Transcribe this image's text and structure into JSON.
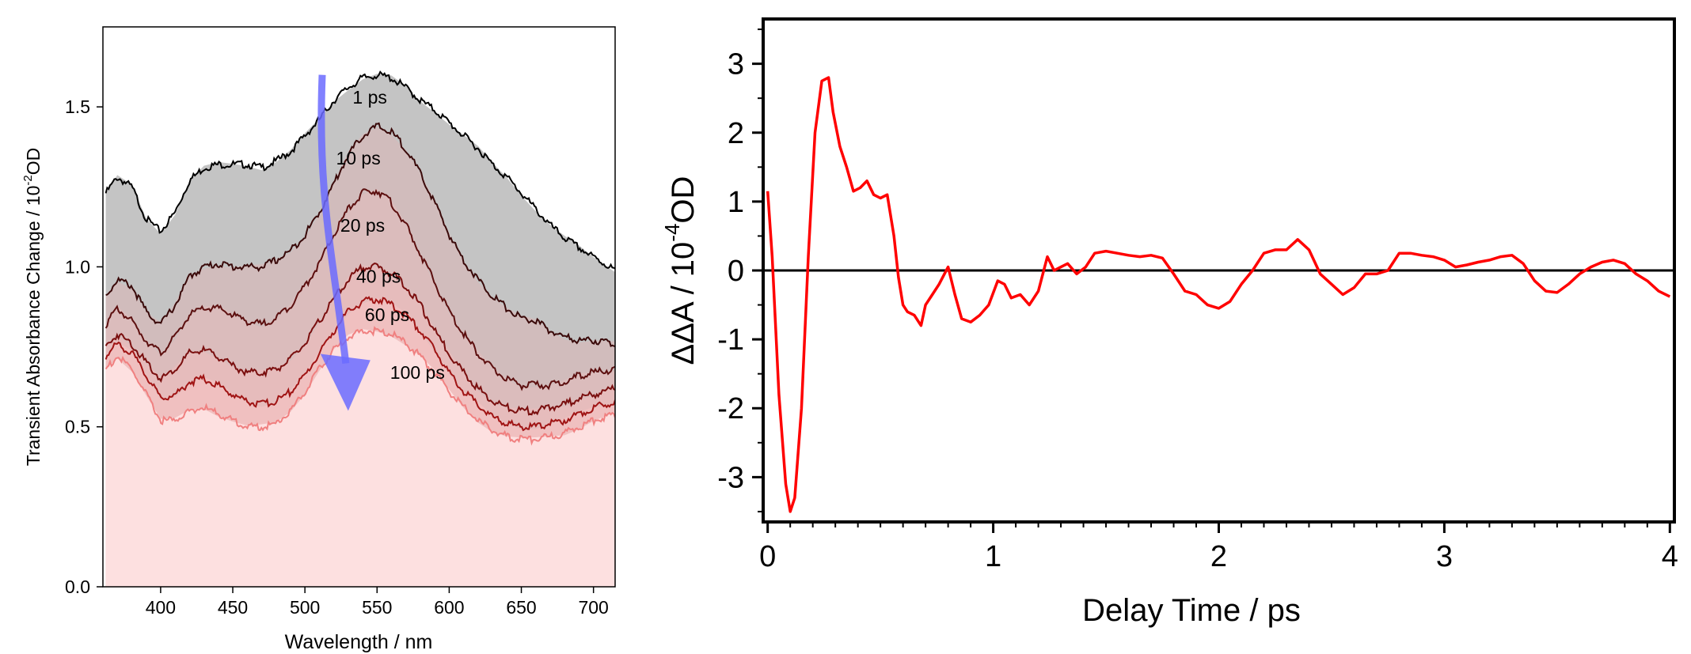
{
  "chart_data": [
    {
      "type": "area",
      "xlabel": "Wavelength / nm",
      "ylabel": "Transient Absorbance Change  / 10",
      "ylabel_exponent": "-2",
      "ylabel_unit": "OD",
      "xlim": [
        360,
        715
      ],
      "ylim": [
        0.0,
        1.75
      ],
      "xticks": [
        400,
        450,
        500,
        550,
        600,
        650,
        700
      ],
      "yticks": [
        0.0,
        0.5,
        1.0,
        1.5
      ],
      "ytick_labels": [
        "0.0",
        "0.5",
        "1.0",
        "1.5"
      ],
      "x": [
        362,
        370,
        380,
        390,
        400,
        410,
        420,
        430,
        440,
        450,
        460,
        470,
        480,
        490,
        500,
        510,
        520,
        530,
        540,
        550,
        560,
        570,
        580,
        590,
        600,
        610,
        620,
        630,
        640,
        650,
        660,
        670,
        680,
        690,
        700,
        715
      ],
      "series": [
        {
          "name": "1 ps",
          "color": "#000000",
          "fill": "#c4c4c4",
          "values": [
            1.23,
            1.28,
            1.25,
            1.15,
            1.11,
            1.17,
            1.27,
            1.31,
            1.32,
            1.32,
            1.32,
            1.31,
            1.33,
            1.36,
            1.41,
            1.46,
            1.52,
            1.56,
            1.59,
            1.6,
            1.59,
            1.56,
            1.52,
            1.49,
            1.45,
            1.41,
            1.37,
            1.32,
            1.28,
            1.23,
            1.18,
            1.13,
            1.09,
            1.06,
            1.03,
            0.99
          ]
        },
        {
          "name": "10 ps",
          "color": "#3a0a0a",
          "fill": "#d1bcbc",
          "values": [
            0.91,
            0.96,
            0.94,
            0.86,
            0.82,
            0.88,
            0.97,
            1.0,
            1.01,
            1.0,
            1.0,
            1.0,
            1.02,
            1.05,
            1.1,
            1.17,
            1.26,
            1.35,
            1.41,
            1.44,
            1.42,
            1.37,
            1.29,
            1.2,
            1.1,
            1.02,
            0.96,
            0.91,
            0.87,
            0.84,
            0.83,
            0.8,
            0.78,
            0.77,
            0.77,
            0.76
          ]
        },
        {
          "name": "20 ps",
          "color": "#5c0f0f",
          "fill": "#dbbcbc",
          "values": [
            0.82,
            0.87,
            0.83,
            0.77,
            0.73,
            0.78,
            0.85,
            0.87,
            0.87,
            0.85,
            0.83,
            0.82,
            0.84,
            0.88,
            0.94,
            1.01,
            1.1,
            1.18,
            1.23,
            1.24,
            1.2,
            1.13,
            1.04,
            0.95,
            0.86,
            0.79,
            0.73,
            0.68,
            0.65,
            0.63,
            0.63,
            0.63,
            0.64,
            0.66,
            0.67,
            0.68
          ]
        },
        {
          "name": "40 ps",
          "color": "#7a0f0f",
          "fill": "#e6bcbc",
          "values": [
            0.75,
            0.79,
            0.76,
            0.7,
            0.65,
            0.68,
            0.73,
            0.74,
            0.72,
            0.69,
            0.67,
            0.67,
            0.68,
            0.71,
            0.76,
            0.83,
            0.9,
            0.96,
            1.0,
            1.0,
            0.98,
            0.94,
            0.88,
            0.8,
            0.73,
            0.67,
            0.62,
            0.58,
            0.56,
            0.55,
            0.55,
            0.56,
            0.57,
            0.59,
            0.6,
            0.62
          ]
        },
        {
          "name": "60 ps",
          "color": "#a01414",
          "fill": "#f0c0c0",
          "values": [
            0.72,
            0.76,
            0.73,
            0.66,
            0.59,
            0.6,
            0.64,
            0.65,
            0.63,
            0.6,
            0.58,
            0.57,
            0.58,
            0.61,
            0.66,
            0.73,
            0.8,
            0.86,
            0.89,
            0.9,
            0.88,
            0.85,
            0.8,
            0.74,
            0.67,
            0.61,
            0.57,
            0.53,
            0.51,
            0.5,
            0.5,
            0.51,
            0.52,
            0.54,
            0.56,
            0.58
          ]
        },
        {
          "name": "100 ps",
          "color": "#f08080",
          "fill": "#fde0e0",
          "values": [
            0.68,
            0.72,
            0.68,
            0.6,
            0.52,
            0.52,
            0.55,
            0.56,
            0.54,
            0.52,
            0.5,
            0.5,
            0.51,
            0.55,
            0.61,
            0.68,
            0.74,
            0.78,
            0.8,
            0.8,
            0.79,
            0.76,
            0.72,
            0.67,
            0.61,
            0.56,
            0.52,
            0.49,
            0.47,
            0.46,
            0.46,
            0.47,
            0.48,
            0.5,
            0.52,
            0.54
          ]
        }
      ],
      "annotations": [
        {
          "text": "1 ps",
          "x": 545,
          "y": 1.51
        },
        {
          "text": "10 ps",
          "x": 537,
          "y": 1.32
        },
        {
          "text": "20 ps",
          "x": 540,
          "y": 1.11
        },
        {
          "text": "40 ps",
          "x": 551,
          "y": 0.95
        },
        {
          "text": "60 ps",
          "x": 557,
          "y": 0.83
        },
        {
          "text": "100 ps",
          "x": 578,
          "y": 0.65
        }
      ],
      "arrow": {
        "color": "#6b6bff",
        "from": [
          512,
          1.6
        ],
        "to": [
          530,
          0.55
        ]
      }
    },
    {
      "type": "line",
      "xlabel": "Delay Time / ps",
      "ylabel": "ΔΔA / 10",
      "ylabel_exponent": "-4",
      "ylabel_unit": "OD",
      "xlim": [
        -0.02,
        4.02
      ],
      "ylim": [
        -3.65,
        3.65
      ],
      "xticks": [
        0,
        1,
        2,
        3,
        4
      ],
      "yticks": [
        -3,
        -2,
        -1,
        0,
        1,
        2,
        3
      ],
      "zero_line": true,
      "series": [
        {
          "color": "#ff0000",
          "x": [
            0.0,
            0.02,
            0.05,
            0.08,
            0.1,
            0.12,
            0.15,
            0.18,
            0.21,
            0.24,
            0.27,
            0.29,
            0.32,
            0.35,
            0.38,
            0.41,
            0.44,
            0.47,
            0.5,
            0.53,
            0.56,
            0.58,
            0.6,
            0.62,
            0.65,
            0.68,
            0.7,
            0.73,
            0.76,
            0.8,
            0.83,
            0.86,
            0.9,
            0.94,
            0.98,
            1.02,
            1.05,
            1.08,
            1.12,
            1.16,
            1.2,
            1.24,
            1.27,
            1.3,
            1.33,
            1.37,
            1.41,
            1.45,
            1.5,
            1.55,
            1.6,
            1.65,
            1.7,
            1.75,
            1.8,
            1.85,
            1.9,
            1.95,
            2.0,
            2.05,
            2.1,
            2.15,
            2.2,
            2.25,
            2.3,
            2.35,
            2.4,
            2.45,
            2.5,
            2.55,
            2.6,
            2.65,
            2.7,
            2.75,
            2.8,
            2.85,
            2.9,
            2.95,
            3.0,
            3.05,
            3.1,
            3.15,
            3.2,
            3.25,
            3.3,
            3.35,
            3.4,
            3.45,
            3.5,
            3.55,
            3.6,
            3.65,
            3.7,
            3.75,
            3.8,
            3.85,
            3.9,
            3.95,
            4.0
          ],
          "y": [
            1.15,
            0.2,
            -1.8,
            -3.1,
            -3.5,
            -3.3,
            -2.0,
            0.2,
            2.0,
            2.75,
            2.8,
            2.3,
            1.8,
            1.5,
            1.15,
            1.2,
            1.3,
            1.1,
            1.05,
            1.1,
            0.5,
            -0.1,
            -0.5,
            -0.6,
            -0.65,
            -0.8,
            -0.5,
            -0.35,
            -0.2,
            0.05,
            -0.35,
            -0.7,
            -0.75,
            -0.65,
            -0.5,
            -0.15,
            -0.2,
            -0.4,
            -0.35,
            -0.5,
            -0.3,
            0.2,
            0.0,
            0.05,
            0.1,
            -0.05,
            0.05,
            0.25,
            0.28,
            0.25,
            0.22,
            0.2,
            0.22,
            0.18,
            -0.05,
            -0.3,
            -0.35,
            -0.5,
            -0.55,
            -0.45,
            -0.2,
            0.0,
            0.25,
            0.3,
            0.3,
            0.45,
            0.3,
            -0.05,
            -0.2,
            -0.35,
            -0.25,
            -0.05,
            -0.05,
            0.0,
            0.25,
            0.25,
            0.22,
            0.2,
            0.15,
            0.05,
            0.08,
            0.12,
            0.15,
            0.2,
            0.22,
            0.1,
            -0.15,
            -0.3,
            -0.32,
            -0.2,
            -0.05,
            0.05,
            0.12,
            0.15,
            0.1,
            -0.05,
            -0.15,
            -0.3,
            -0.38
          ]
        }
      ]
    }
  ]
}
